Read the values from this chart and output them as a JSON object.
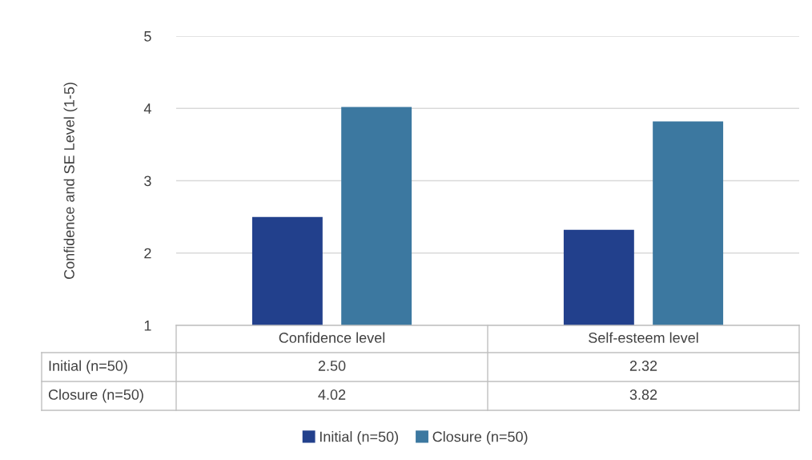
{
  "chart_data": {
    "type": "bar",
    "ylabel": "Confidence and SE Level (1-5)",
    "categories": [
      "Confidence level",
      "Self-esteem level"
    ],
    "series": [
      {
        "name": "Initial (n=50)",
        "color": "#22408c",
        "values": [
          2.5,
          2.32
        ],
        "value_labels": [
          "2.50",
          "2.32"
        ]
      },
      {
        "name": "Closure (n=50)",
        "color": "#3c78a0",
        "values": [
          4.02,
          3.82
        ],
        "value_labels": [
          "4.02",
          "3.82"
        ]
      }
    ],
    "ylim": [
      1,
      5
    ],
    "yticks": [
      1,
      2,
      3,
      4,
      5
    ],
    "grid": "y",
    "legend": "bottom"
  }
}
